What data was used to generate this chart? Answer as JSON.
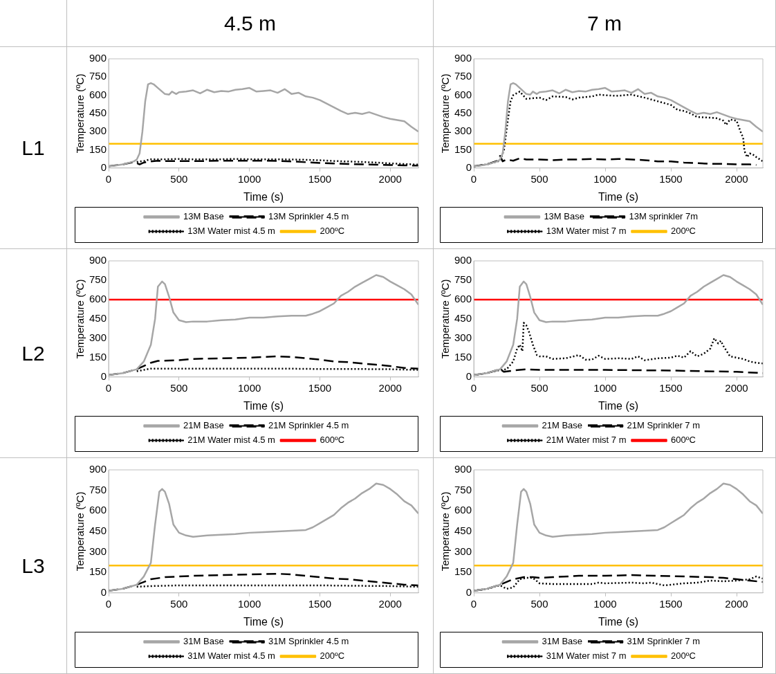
{
  "chart_data": [
    {
      "type": "line",
      "xlabel": "Time (s)",
      "ylabel": "Temperature (ºC)",
      "xlim": [
        0,
        2200
      ],
      "xticks": [
        0,
        500,
        1000,
        1500,
        2000
      ],
      "ylim": [
        0,
        900
      ],
      "yticks": [
        0,
        150,
        300,
        450,
        600,
        750,
        900
      ],
      "grid": false,
      "legend": "bottom",
      "marker": "none",
      "series": [
        {
          "name": "13M Base",
          "color": "#a6a6a6",
          "line_style": "solid",
          "x": [
            0,
            50,
            100,
            150,
            180,
            200,
            220,
            240,
            260,
            280,
            300,
            320,
            350,
            400,
            430,
            450,
            480,
            500,
            550,
            600,
            650,
            700,
            750,
            800,
            850,
            900,
            950,
            1000,
            1050,
            1100,
            1150,
            1200,
            1250,
            1300,
            1350,
            1400,
            1450,
            1500,
            1550,
            1600,
            1650,
            1700,
            1750,
            1800,
            1850,
            1900,
            1950,
            2000,
            2050,
            2100,
            2150,
            2200
          ],
          "values": [
            15,
            20,
            30,
            45,
            55,
            70,
            120,
            300,
            550,
            690,
            700,
            690,
            660,
            610,
            605,
            630,
            610,
            625,
            630,
            640,
            615,
            645,
            625,
            635,
            630,
            645,
            650,
            660,
            630,
            635,
            640,
            620,
            650,
            610,
            620,
            590,
            580,
            560,
            530,
            500,
            470,
            445,
            455,
            445,
            460,
            440,
            420,
            405,
            395,
            385,
            340,
            300
          ]
        },
        {
          "name": "13M Sprinkler 4.5 m",
          "color": "#000000",
          "line_style": "dashed",
          "x": [
            0,
            100,
            180,
            200,
            220,
            250,
            300,
            350,
            400,
            500,
            600,
            700,
            800,
            900,
            1000,
            1100,
            1200,
            1300,
            1400,
            1500,
            1600,
            1700,
            1800,
            1900,
            2000,
            2100,
            2200
          ],
          "values": [
            15,
            30,
            50,
            40,
            30,
            45,
            55,
            60,
            58,
            58,
            58,
            58,
            60,
            60,
            60,
            60,
            58,
            55,
            48,
            42,
            38,
            33,
            30,
            28,
            25,
            22,
            20
          ]
        },
        {
          "name": "13M Water mist 4.5 m",
          "color": "#000000",
          "line_style": "dotted",
          "x": [
            200,
            250,
            300,
            400,
            500,
            600,
            700,
            800,
            900,
            1000,
            1100,
            1200,
            1300,
            1400,
            1500,
            1600,
            1700,
            1800,
            1900,
            2000,
            2100,
            2200
          ],
          "values": [
            50,
            58,
            72,
            72,
            75,
            72,
            72,
            72,
            75,
            72,
            72,
            72,
            70,
            68,
            64,
            58,
            54,
            50,
            45,
            38,
            33,
            28
          ]
        },
        {
          "name": "200ºC",
          "color": "#ffc000",
          "line_style": "solid",
          "x": [
            0,
            2200
          ],
          "values": [
            200,
            200
          ]
        }
      ]
    },
    {
      "type": "line",
      "xlabel": "Time (s)",
      "ylabel": "Temperature (ºC)",
      "xlim": [
        0,
        2200
      ],
      "xticks": [
        0,
        500,
        1000,
        1500,
        2000
      ],
      "ylim": [
        0,
        900
      ],
      "yticks": [
        0,
        150,
        300,
        450,
        600,
        750,
        900
      ],
      "grid": false,
      "legend": "bottom",
      "marker": "none",
      "series": [
        {
          "name": "13M Base",
          "color": "#a6a6a6",
          "line_style": "solid",
          "x": [
            0,
            50,
            100,
            150,
            180,
            200,
            220,
            240,
            260,
            280,
            300,
            320,
            350,
            400,
            430,
            450,
            480,
            500,
            550,
            600,
            650,
            700,
            750,
            800,
            850,
            900,
            950,
            1000,
            1050,
            1100,
            1150,
            1200,
            1250,
            1300,
            1350,
            1400,
            1450,
            1500,
            1550,
            1600,
            1650,
            1700,
            1750,
            1800,
            1850,
            1900,
            1950,
            2000,
            2050,
            2100,
            2150,
            2200
          ],
          "values": [
            15,
            20,
            30,
            45,
            55,
            70,
            120,
            300,
            550,
            690,
            700,
            690,
            660,
            610,
            605,
            630,
            610,
            625,
            630,
            640,
            615,
            645,
            625,
            635,
            630,
            645,
            650,
            660,
            630,
            635,
            640,
            620,
            650,
            610,
            620,
            590,
            580,
            560,
            530,
            500,
            470,
            445,
            455,
            445,
            460,
            440,
            420,
            405,
            395,
            385,
            340,
            300
          ]
        },
        {
          "name": "13M sprinkler 7m",
          "color": "#000000",
          "line_style": "dashed",
          "x": [
            0,
            100,
            180,
            200,
            220,
            250,
            300,
            350,
            400,
            500,
            600,
            700,
            800,
            900,
            1000,
            1100,
            1200,
            1300,
            1400,
            1500,
            1600,
            1700,
            1800,
            1900,
            2000,
            2100,
            2150
          ],
          "values": [
            15,
            30,
            60,
            100,
            55,
            70,
            60,
            80,
            70,
            70,
            65,
            70,
            70,
            75,
            70,
            75,
            70,
            65,
            55,
            55,
            45,
            40,
            35,
            35,
            30,
            30,
            25
          ]
        },
        {
          "name": "13M Water mist 7 m",
          "color": "#000000",
          "line_style": "dotted",
          "x": [
            0,
            100,
            200,
            230,
            260,
            280,
            300,
            350,
            400,
            500,
            550,
            600,
            700,
            750,
            800,
            900,
            950,
            1000,
            1100,
            1200,
            1300,
            1400,
            1500,
            1550,
            1600,
            1650,
            1700,
            1800,
            1850,
            1900,
            1920,
            1950,
            2000,
            2030,
            2050,
            2060,
            2080,
            2100,
            2120,
            2150,
            2200
          ],
          "values": [
            15,
            30,
            60,
            150,
            400,
            550,
            600,
            630,
            570,
            580,
            560,
            590,
            585,
            565,
            580,
            590,
            605,
            600,
            595,
            605,
            580,
            550,
            520,
            480,
            470,
            450,
            420,
            415,
            410,
            390,
            355,
            400,
            390,
            300,
            250,
            140,
            90,
            120,
            115,
            90,
            55
          ]
        },
        {
          "name": "200ºC",
          "color": "#ffc000",
          "line_style": "solid",
          "x": [
            0,
            2200
          ],
          "values": [
            200,
            200
          ]
        }
      ]
    },
    {
      "type": "line",
      "xlabel": "Time (s)",
      "ylabel": "Temperature (ºC)",
      "xlim": [
        0,
        2200
      ],
      "xticks": [
        0,
        500,
        1000,
        1500,
        2000
      ],
      "ylim": [
        0,
        900
      ],
      "yticks": [
        0,
        150,
        300,
        450,
        600,
        750,
        900
      ],
      "grid": false,
      "legend": "bottom",
      "marker": "none",
      "series": [
        {
          "name": "21M Base",
          "color": "#a6a6a6",
          "line_style": "solid",
          "x": [
            0,
            100,
            200,
            250,
            300,
            330,
            350,
            380,
            400,
            430,
            460,
            500,
            550,
            600,
            700,
            800,
            900,
            1000,
            1100,
            1200,
            1300,
            1400,
            1450,
            1500,
            1550,
            1600,
            1650,
            1700,
            1750,
            1800,
            1850,
            1900,
            1950,
            2000,
            2050,
            2100,
            2150,
            2200
          ],
          "values": [
            15,
            30,
            60,
            120,
            250,
            450,
            700,
            740,
            720,
            620,
            500,
            440,
            425,
            430,
            430,
            440,
            445,
            460,
            460,
            470,
            475,
            475,
            490,
            510,
            540,
            570,
            630,
            660,
            700,
            730,
            760,
            790,
            775,
            740,
            710,
            680,
            640,
            560
          ]
        },
        {
          "name": "21M Sprinkler 4.5 m",
          "color": "#000000",
          "line_style": "dashed",
          "x": [
            0,
            100,
            200,
            300,
            350,
            500,
            600,
            800,
            1000,
            1100,
            1200,
            1300,
            1400,
            1500,
            1600,
            1700,
            1800,
            1900,
            2000,
            2100,
            2200
          ],
          "values": [
            15,
            30,
            60,
            110,
            125,
            130,
            140,
            145,
            150,
            155,
            160,
            155,
            145,
            135,
            120,
            115,
            105,
            95,
            85,
            70,
            65
          ]
        },
        {
          "name": "21M Water mist 4.5 m",
          "color": "#000000",
          "line_style": "dotted",
          "x": [
            200,
            300,
            500,
            750,
            1000,
            1250,
            1500,
            1750,
            2000,
            2200
          ],
          "values": [
            45,
            65,
            65,
            65,
            65,
            65,
            62,
            62,
            60,
            55
          ]
        },
        {
          "name": "600ºC",
          "color": "#ff0000",
          "line_style": "solid",
          "x": [
            0,
            2200
          ],
          "values": [
            600,
            600
          ]
        }
      ]
    },
    {
      "type": "line",
      "xlabel": "Time (s)",
      "ylabel": "Temperature (ºC)",
      "xlim": [
        0,
        2200
      ],
      "xticks": [
        0,
        500,
        1000,
        1500,
        2000
      ],
      "ylim": [
        0,
        900
      ],
      "yticks": [
        0,
        150,
        300,
        450,
        600,
        750,
        900
      ],
      "grid": false,
      "legend": "bottom",
      "marker": "none",
      "series": [
        {
          "name": "21M Base",
          "color": "#a6a6a6",
          "line_style": "solid",
          "x": [
            0,
            100,
            200,
            250,
            300,
            330,
            350,
            380,
            400,
            430,
            460,
            500,
            550,
            600,
            700,
            800,
            900,
            1000,
            1100,
            1200,
            1300,
            1400,
            1450,
            1500,
            1550,
            1600,
            1650,
            1700,
            1750,
            1800,
            1850,
            1900,
            1950,
            2000,
            2050,
            2100,
            2150,
            2200
          ],
          "values": [
            15,
            30,
            60,
            120,
            250,
            450,
            700,
            740,
            720,
            620,
            500,
            440,
            425,
            430,
            430,
            440,
            445,
            460,
            460,
            470,
            475,
            475,
            490,
            510,
            540,
            570,
            630,
            660,
            700,
            730,
            760,
            790,
            775,
            740,
            710,
            680,
            640,
            560
          ]
        },
        {
          "name": "21M Sprinkler 7 m",
          "color": "#000000",
          "line_style": "dashed",
          "x": [
            0,
            100,
            200,
            230,
            300,
            400,
            500,
            1000,
            1500,
            2000,
            2200
          ],
          "values": [
            15,
            30,
            60,
            40,
            50,
            60,
            55,
            55,
            50,
            40,
            30
          ]
        },
        {
          "name": "21M Water mist 7 m",
          "color": "#000000",
          "line_style": "dotted",
          "x": [
            0,
            100,
            200,
            250,
            300,
            330,
            350,
            370,
            380,
            400,
            420,
            450,
            480,
            500,
            550,
            600,
            700,
            800,
            850,
            900,
            950,
            1000,
            1100,
            1200,
            1250,
            1300,
            1400,
            1500,
            1550,
            1600,
            1650,
            1700,
            1750,
            1800,
            1830,
            1860,
            1880,
            1900,
            1950,
            2000,
            2050,
            2100,
            2150,
            2200
          ],
          "values": [
            15,
            30,
            55,
            60,
            120,
            220,
            250,
            200,
            420,
            400,
            350,
            250,
            170,
            160,
            160,
            140,
            145,
            170,
            135,
            135,
            165,
            140,
            145,
            140,
            160,
            130,
            145,
            150,
            165,
            150,
            200,
            160,
            180,
            220,
            300,
            260,
            280,
            240,
            160,
            150,
            140,
            120,
            110,
            105
          ]
        },
        {
          "name": "600ºC",
          "color": "#ff0000",
          "line_style": "solid",
          "x": [
            0,
            2200
          ],
          "values": [
            600,
            600
          ]
        }
      ]
    },
    {
      "type": "line",
      "xlabel": "Time (s)",
      "ylabel": "Temperature (ºC)",
      "xlim": [
        0,
        2200
      ],
      "xticks": [
        0,
        500,
        1000,
        1500,
        2000
      ],
      "ylim": [
        0,
        900
      ],
      "yticks": [
        0,
        150,
        300,
        450,
        600,
        750,
        900
      ],
      "grid": false,
      "legend": "bottom",
      "marker": "none",
      "series": [
        {
          "name": "31M Base",
          "color": "#a6a6a6",
          "line_style": "solid",
          "x": [
            0,
            100,
            200,
            250,
            300,
            330,
            360,
            380,
            400,
            430,
            460,
            500,
            550,
            600,
            700,
            800,
            900,
            1000,
            1100,
            1200,
            1300,
            1400,
            1450,
            1500,
            1550,
            1600,
            1650,
            1700,
            1750,
            1800,
            1850,
            1900,
            1950,
            2000,
            2050,
            2100,
            2150,
            2200
          ],
          "values": [
            15,
            30,
            60,
            120,
            220,
            500,
            740,
            760,
            740,
            650,
            500,
            440,
            420,
            410,
            420,
            425,
            430,
            440,
            445,
            450,
            455,
            460,
            480,
            510,
            540,
            570,
            620,
            660,
            690,
            730,
            760,
            800,
            790,
            760,
            720,
            670,
            640,
            580
          ]
        },
        {
          "name": "31M Sprinkler 4.5 m",
          "color": "#000000",
          "line_style": "dashed",
          "x": [
            0,
            100,
            200,
            300,
            400,
            500,
            600,
            800,
            1000,
            1200,
            1300,
            1400,
            1500,
            1600,
            1700,
            1800,
            1900,
            2000,
            2100,
            2200
          ],
          "values": [
            15,
            30,
            60,
            100,
            115,
            120,
            125,
            130,
            135,
            140,
            135,
            125,
            115,
            105,
            100,
            90,
            80,
            70,
            60,
            55
          ]
        },
        {
          "name": "31M Water mist 4.5 m",
          "color": "#000000",
          "line_style": "dotted",
          "x": [
            200,
            300,
            500,
            750,
            1000,
            1250,
            1500,
            1750,
            2000,
            2200
          ],
          "values": [
            45,
            50,
            55,
            55,
            55,
            55,
            55,
            52,
            50,
            45
          ]
        },
        {
          "name": "200ºC",
          "color": "#ffc000",
          "line_style": "solid",
          "x": [
            0,
            2200
          ],
          "values": [
            200,
            200
          ]
        }
      ]
    },
    {
      "type": "line",
      "xlabel": "Time (s)",
      "ylabel": "Temperature (ºC)",
      "xlim": [
        0,
        2200
      ],
      "xticks": [
        0,
        500,
        1000,
        1500,
        2000
      ],
      "ylim": [
        0,
        900
      ],
      "yticks": [
        0,
        150,
        300,
        450,
        600,
        750,
        900
      ],
      "grid": false,
      "legend": "bottom",
      "marker": "none",
      "series": [
        {
          "name": "31M Base",
          "color": "#a6a6a6",
          "line_style": "solid",
          "x": [
            0,
            100,
            200,
            250,
            300,
            330,
            360,
            380,
            400,
            430,
            460,
            500,
            550,
            600,
            700,
            800,
            900,
            1000,
            1100,
            1200,
            1300,
            1400,
            1450,
            1500,
            1550,
            1600,
            1650,
            1700,
            1750,
            1800,
            1850,
            1900,
            1950,
            2000,
            2050,
            2100,
            2150,
            2200
          ],
          "values": [
            15,
            30,
            60,
            120,
            220,
            500,
            740,
            760,
            740,
            650,
            500,
            440,
            420,
            410,
            420,
            425,
            430,
            440,
            445,
            450,
            455,
            460,
            480,
            510,
            540,
            570,
            620,
            660,
            690,
            730,
            760,
            800,
            790,
            760,
            720,
            670,
            640,
            580
          ]
        },
        {
          "name": "31M Sprinkler 7 m",
          "color": "#000000",
          "line_style": "dashed",
          "x": [
            0,
            100,
            200,
            300,
            380,
            450,
            500,
            600,
            800,
            1000,
            1200,
            1400,
            1600,
            1800,
            1900,
            2000,
            2100,
            2200
          ],
          "values": [
            15,
            30,
            60,
            100,
            115,
            115,
            110,
            115,
            125,
            125,
            130,
            125,
            120,
            115,
            110,
            100,
            90,
            80
          ]
        },
        {
          "name": "31M Water mist 7 m",
          "color": "#000000",
          "line_style": "dotted",
          "x": [
            0,
            100,
            200,
            250,
            300,
            350,
            400,
            450,
            500,
            600,
            800,
            900,
            950,
            1000,
            1200,
            1300,
            1350,
            1400,
            1450,
            1500,
            1600,
            1700,
            1800,
            1900,
            2000,
            2100,
            2150,
            2200
          ],
          "values": [
            15,
            30,
            55,
            30,
            40,
            100,
            110,
            110,
            70,
            65,
            65,
            65,
            75,
            70,
            75,
            70,
            75,
            65,
            55,
            60,
            70,
            75,
            90,
            85,
            90,
            100,
            120,
            105
          ]
        },
        {
          "name": "200ºC",
          "color": "#ffc000",
          "line_style": "solid",
          "x": [
            0,
            2200
          ],
          "values": [
            200,
            200
          ]
        }
      ]
    },
    {
      "type": "other",
      "categories": [
        "4.5 m",
        "7 m"
      ],
      "y_categories": [
        "L1",
        "L2",
        "L3"
      ]
    }
  ]
}
